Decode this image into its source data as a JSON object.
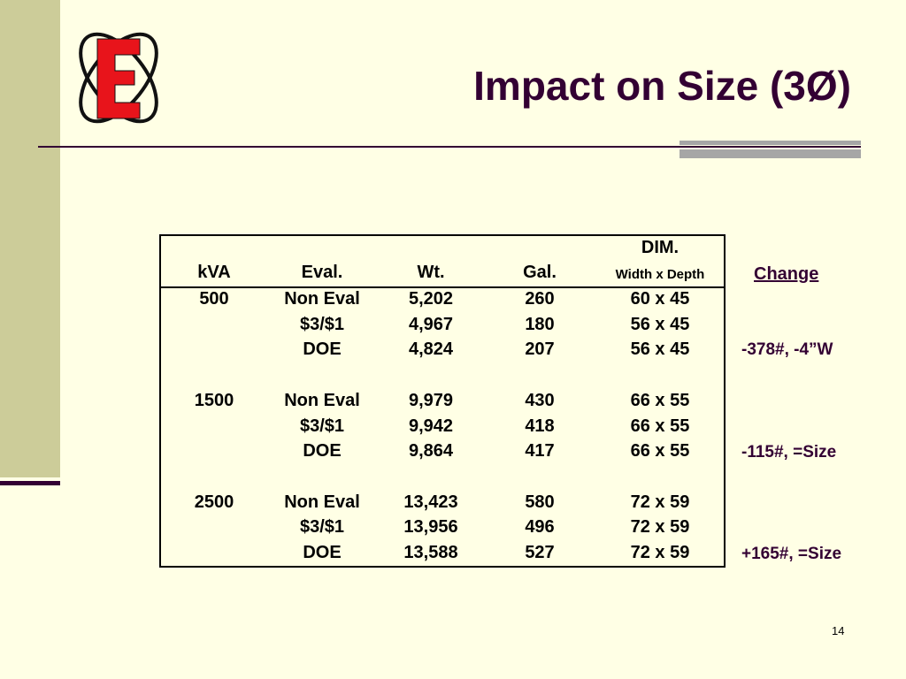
{
  "title": "Impact on Size (3Ø)",
  "logo": {
    "letter": "E"
  },
  "table": {
    "group_header": "DIM.",
    "headers": [
      "kVA",
      "Eval.",
      "Wt.",
      "Gal.",
      "Width x Depth"
    ],
    "groups": [
      {
        "kva": "500",
        "rows": [
          {
            "eval": "Non Eval",
            "wt": "5,202",
            "gal": "260",
            "dim": "60 x 45"
          },
          {
            "eval": "$3/$1",
            "wt": "4,967",
            "gal": "180",
            "dim": "56 x 45"
          },
          {
            "eval": "DOE",
            "wt": "4,824",
            "gal": "207",
            "dim": "56 x 45"
          }
        ]
      },
      {
        "kva": "1500",
        "rows": [
          {
            "eval": "Non Eval",
            "wt": "9,979",
            "gal": "430",
            "dim": "66 x 55"
          },
          {
            "eval": "$3/$1",
            "wt": "9,942",
            "gal": "418",
            "dim": "66 x 55"
          },
          {
            "eval": "DOE",
            "wt": "9,864",
            "gal": "417",
            "dim": "66 x 55"
          }
        ]
      },
      {
        "kva": "2500",
        "rows": [
          {
            "eval": "Non Eval",
            "wt": "13,423",
            "gal": "580",
            "dim": "72 x 59"
          },
          {
            "eval": "$3/$1",
            "wt": "13,956",
            "gal": "496",
            "dim": "72 x 59"
          },
          {
            "eval": "DOE",
            "wt": "13,588",
            "gal": "527",
            "dim": "72 x 59"
          }
        ]
      }
    ]
  },
  "change": {
    "header": "Change",
    "notes": [
      "-378#, -4”W",
      "-115#, =Size",
      "+165#, =Size"
    ]
  },
  "page_number": "14",
  "colors": {
    "background": "#FFFFE5",
    "sidebar": "#CCCC99",
    "title": "#330033",
    "logo_red": "#E8141B"
  }
}
